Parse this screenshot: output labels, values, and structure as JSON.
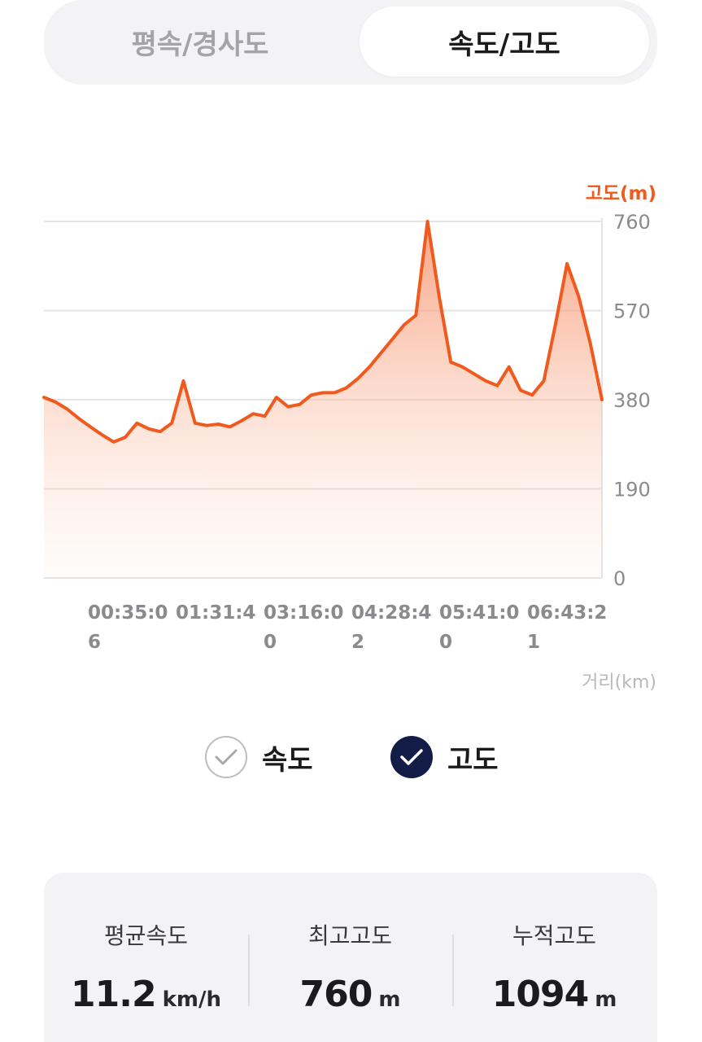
{
  "tabs": {
    "slope": "평속/경사도",
    "speed_altitude": "속도/고도",
    "selected": "speed_altitude"
  },
  "chart_data": {
    "type": "area",
    "y_axis_label": "고도(m)",
    "x_axis_label": "거리(km)",
    "ylim": [
      0,
      760
    ],
    "y_ticks": [
      "760",
      "570",
      "380",
      "190",
      "0"
    ],
    "x_tick_labels": [
      {
        "line1": "00:35:0",
        "line2": "6"
      },
      {
        "line1": "01:31:4",
        "line2": ""
      },
      {
        "line1": "03:16:0",
        "line2": "0"
      },
      {
        "line1": "04:28:4",
        "line2": "2"
      },
      {
        "line1": "05:41:0",
        "line2": "0"
      },
      {
        "line1": "06:43:2",
        "line2": "1"
      }
    ],
    "grid": true,
    "series": [
      {
        "color": "#f05a1e",
        "values": [
          385,
          375,
          360,
          340,
          322,
          305,
          290,
          300,
          330,
          318,
          312,
          330,
          420,
          330,
          325,
          328,
          322,
          335,
          350,
          345,
          385,
          365,
          370,
          390,
          395,
          395,
          405,
          425,
          450,
          480,
          510,
          540,
          560,
          760,
          600,
          460,
          450,
          435,
          420,
          410,
          450,
          400,
          390,
          420,
          540,
          670,
          600,
          500,
          380
        ],
        "x": [
          0.0,
          0.03,
          0.06,
          0.09,
          0.12,
          0.15,
          0.17,
          0.19,
          0.2,
          0.22,
          0.24,
          0.27,
          0.3,
          0.33,
          0.36,
          0.39,
          0.42,
          0.45,
          0.48,
          0.5,
          0.48,
          0.5,
          0.52,
          0.54,
          0.56,
          0.58,
          0.6,
          0.62,
          0.64,
          0.66,
          0.68,
          0.7,
          0.72,
          0.74,
          0.77,
          0.8,
          0.83,
          0.85,
          0.87,
          0.89,
          0.9,
          0.91,
          0.93,
          0.95,
          0.97,
          0.99,
          1.01,
          1.03,
          1.05
        ]
      }
    ]
  },
  "legend": {
    "speed_label": "속도",
    "speed_checked": false,
    "altitude_label": "고도",
    "altitude_checked": true
  },
  "stats": {
    "avg_speed": {
      "label": "평균속도",
      "value": "11.2",
      "unit": "km/h"
    },
    "max_altitude": {
      "label": "최고고도",
      "value": "760",
      "unit": "m"
    },
    "total_ascent": {
      "label": "누적고도",
      "value": "1094",
      "unit": "m"
    }
  },
  "colors": {
    "accent": "#f05a1e",
    "check_on": "#131b47"
  }
}
